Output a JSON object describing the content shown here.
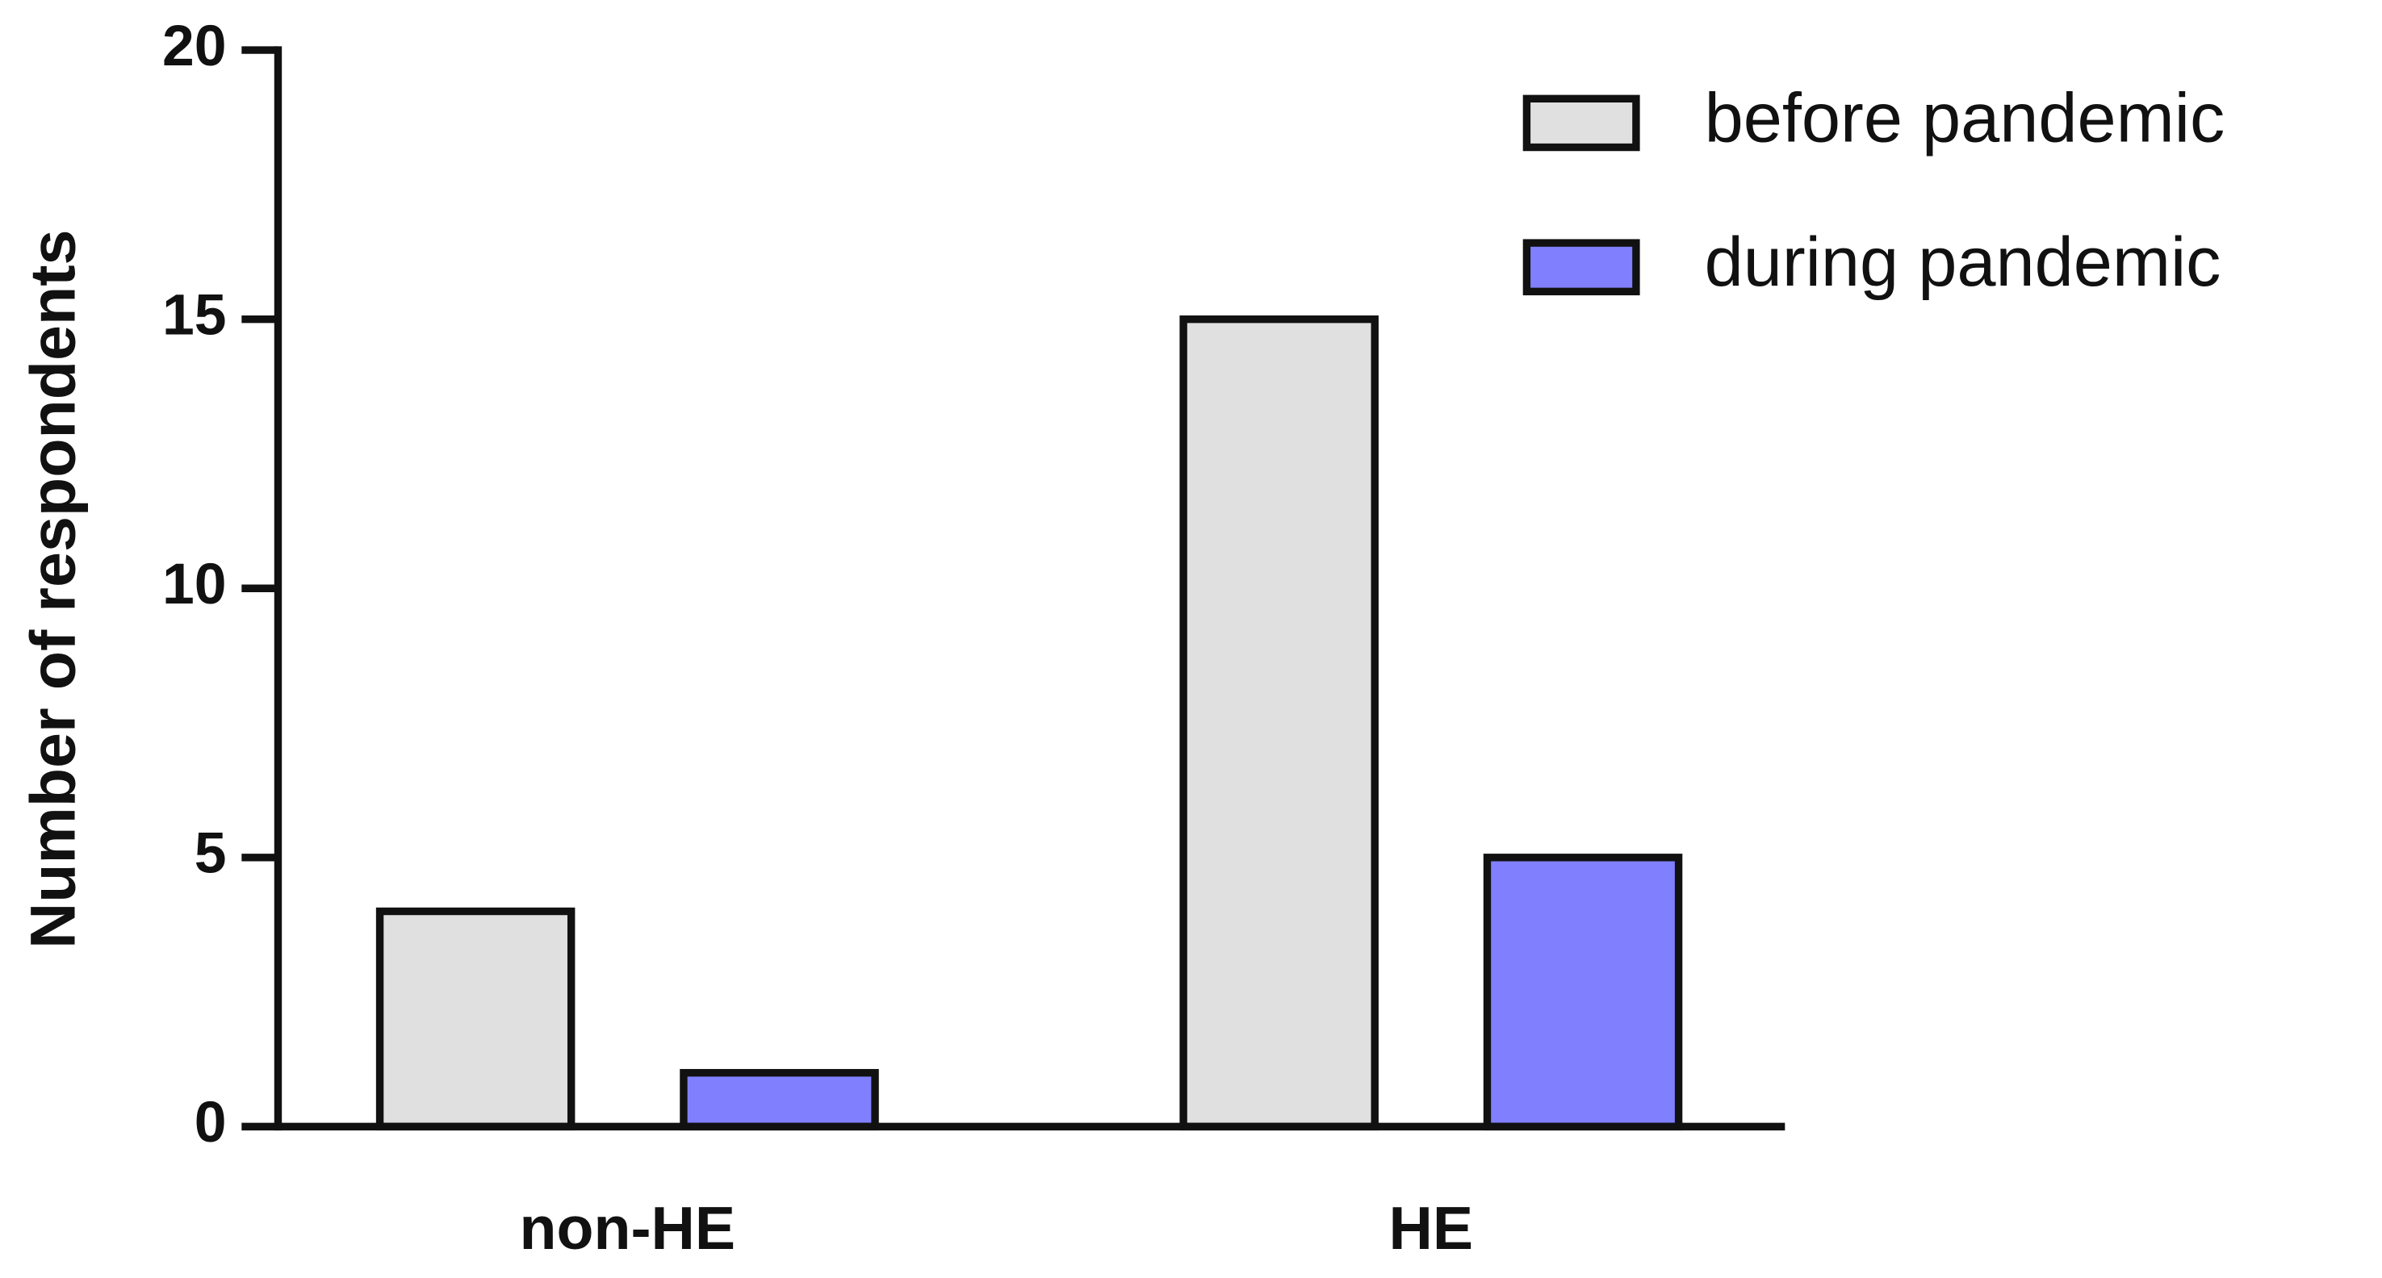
{
  "chart_data": {
    "type": "bar",
    "y_label": "Number of respondents",
    "categories": [
      "non-HE",
      "HE"
    ],
    "series": [
      {
        "name": "before pandemic",
        "color": "#e0e0e0",
        "values": [
          4,
          15
        ]
      },
      {
        "name": "during pandemic",
        "color": "#8080ff",
        "values": [
          1,
          5
        ]
      }
    ],
    "ylim": [
      0,
      20
    ],
    "yticks": [
      0,
      5,
      10,
      15,
      20
    ],
    "legend": "top-right"
  }
}
